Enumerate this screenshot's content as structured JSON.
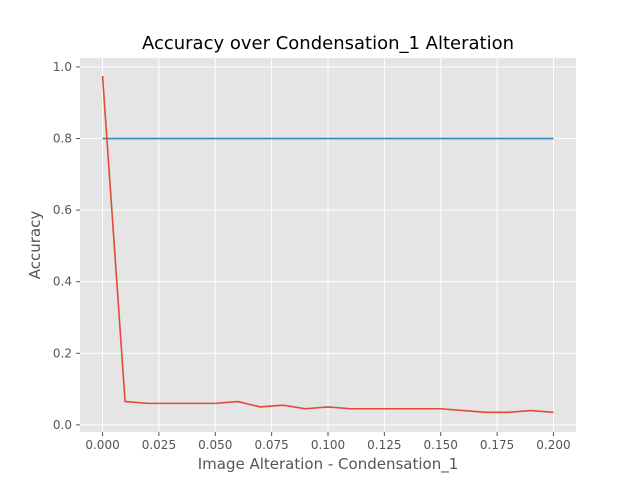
{
  "chart_data": {
    "type": "line",
    "title": "Accuracy over Condensation_1 Alteration",
    "xlabel": "Image Alteration - Condensation_1",
    "ylabel": "Accuracy",
    "xlim": [
      -0.01,
      0.21
    ],
    "ylim": [
      -0.02,
      1.025
    ],
    "grid": true,
    "x_ticks": [
      0.0,
      0.025,
      0.05,
      0.075,
      0.1,
      0.125,
      0.15,
      0.175,
      0.2
    ],
    "x_tick_labels": [
      "0.000",
      "0.025",
      "0.050",
      "0.075",
      "0.100",
      "0.125",
      "0.150",
      "0.175",
      "0.200"
    ],
    "y_ticks": [
      0.0,
      0.2,
      0.4,
      0.6,
      0.8,
      1.0
    ],
    "y_tick_labels": [
      "0.0",
      "0.2",
      "0.4",
      "0.6",
      "0.8",
      "1.0"
    ],
    "series": [
      {
        "color": "#348abd",
        "x": [
          0.0,
          0.2
        ],
        "y": [
          0.8,
          0.8
        ]
      },
      {
        "color": "#e24a33",
        "x": [
          0.0,
          0.01,
          0.02,
          0.03,
          0.04,
          0.05,
          0.06,
          0.07,
          0.08,
          0.09,
          0.1,
          0.11,
          0.12,
          0.13,
          0.14,
          0.15,
          0.16,
          0.17,
          0.18,
          0.19,
          0.2
        ],
        "y": [
          0.975,
          0.065,
          0.06,
          0.06,
          0.06,
          0.06,
          0.065,
          0.05,
          0.055,
          0.045,
          0.05,
          0.045,
          0.045,
          0.045,
          0.045,
          0.045,
          0.04,
          0.035,
          0.035,
          0.04,
          0.035
        ]
      }
    ]
  }
}
